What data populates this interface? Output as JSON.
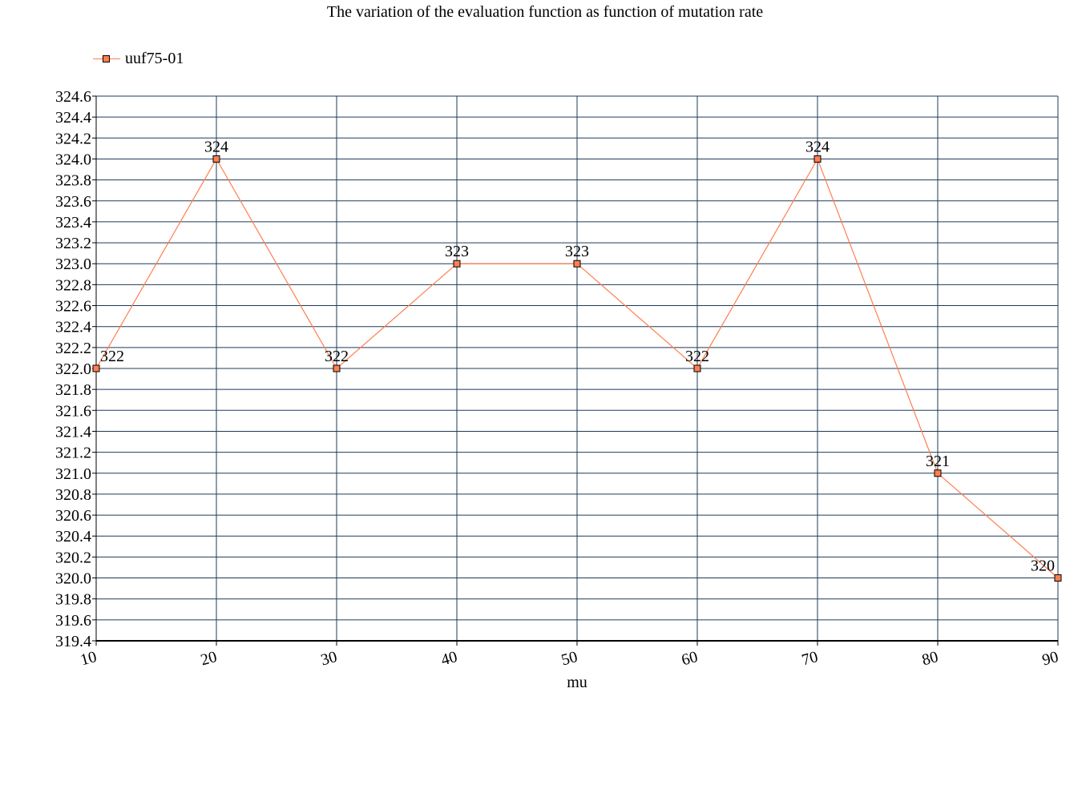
{
  "chart_data": {
    "type": "line",
    "title": "The variation of the evaluation function as function of mutation rate",
    "xlabel": "mu",
    "ylabel": "",
    "x": [
      10,
      20,
      30,
      40,
      50,
      60,
      70,
      80,
      90
    ],
    "xlim": [
      10,
      90
    ],
    "ylim": [
      319.4,
      324.6
    ],
    "ytick_step": 0.2,
    "grid": true,
    "legend_position": "top-left",
    "series": [
      {
        "name": "uuf75-01",
        "values": [
          322,
          324,
          322,
          323,
          323,
          322,
          324,
          321,
          320
        ],
        "labels": [
          "322",
          "324",
          "322",
          "323",
          "323",
          "322",
          "324",
          "321",
          "320"
        ],
        "color": "#ff7f50",
        "marker": "square"
      }
    ],
    "colors": {
      "grid": "#1f3b5a",
      "axis": "#000000",
      "marker_border": "#000000"
    }
  }
}
